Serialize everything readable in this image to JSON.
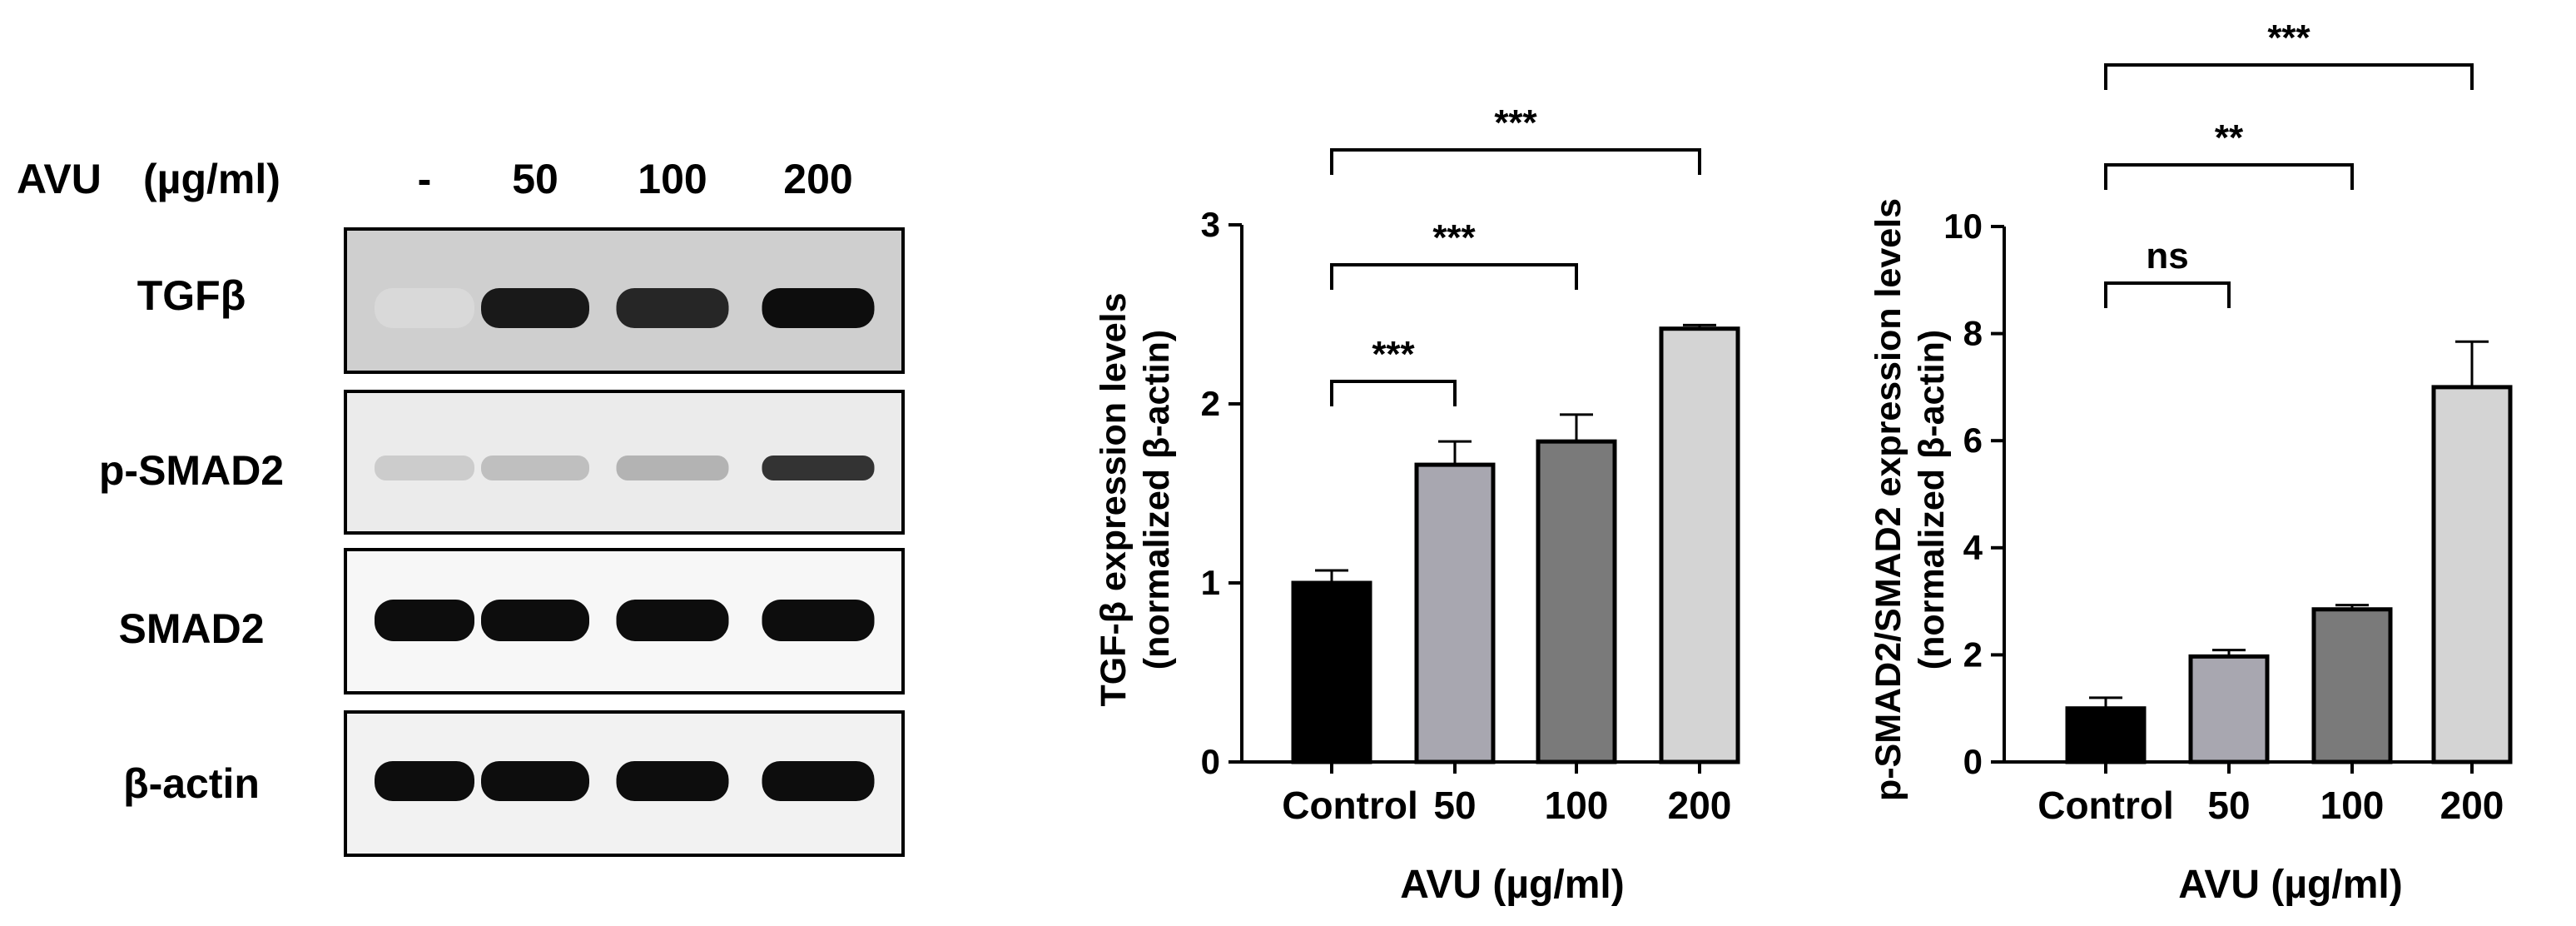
{
  "western_blot": {
    "header_label": "AVU",
    "header_unit": "(µg/ml)",
    "lanes": [
      "-",
      "50",
      "100",
      "200"
    ],
    "rows": [
      {
        "label": "TGFβ",
        "band_intensity": [
          0.15,
          0.9,
          0.85,
          0.95
        ]
      },
      {
        "label": "p-SMAD2",
        "band_intensity": [
          0.2,
          0.25,
          0.3,
          0.8
        ]
      },
      {
        "label": "SMAD2",
        "band_intensity": [
          0.95,
          0.95,
          0.95,
          0.95
        ]
      },
      {
        "label": "β-actin",
        "band_intensity": [
          0.95,
          0.95,
          0.95,
          0.95
        ]
      }
    ]
  },
  "chart_data": [
    {
      "type": "bar",
      "categories": [
        "Control",
        "50",
        "100",
        "200"
      ],
      "values": [
        1.0,
        1.66,
        1.79,
        2.42
      ],
      "errors": [
        0.07,
        0.13,
        0.15,
        0.02
      ],
      "ylabel_line1": "TGF-β expression levels",
      "ylabel_line2": "(normalized β-actin)",
      "xlabel": "AVU (µg/ml)",
      "ylim": [
        0,
        3
      ],
      "yticks": [
        "0",
        "1",
        "2",
        "3"
      ],
      "bar_colors": [
        "#000000",
        "#a8a7b0",
        "#7a7a7a",
        "#d4d4d4"
      ],
      "significance": [
        {
          "from": 0,
          "to": 1,
          "label": "***",
          "level": 1
        },
        {
          "from": 0,
          "to": 2,
          "label": "***",
          "level": 2
        },
        {
          "from": 0,
          "to": 3,
          "label": "***",
          "level": 3
        }
      ]
    },
    {
      "type": "bar",
      "categories": [
        "Control",
        "50",
        "100",
        "200"
      ],
      "values": [
        1.0,
        1.97,
        2.85,
        7.0
      ],
      "errors": [
        0.2,
        0.12,
        0.08,
        0.85
      ],
      "ylabel_line1": "p-SMAD2/SMAD2 expression levels",
      "ylabel_line2": "(normalized β-actin)",
      "xlabel": "AVU (µg/ml)",
      "ylim": [
        0,
        10
      ],
      "yticks": [
        "0",
        "2",
        "4",
        "6",
        "8",
        "10"
      ],
      "bar_colors": [
        "#000000",
        "#a8a7b0",
        "#7a7a7a",
        "#d4d4d4"
      ],
      "significance": [
        {
          "from": 0,
          "to": 1,
          "label": "ns",
          "level": 1
        },
        {
          "from": 0,
          "to": 2,
          "label": "**",
          "level": 2
        },
        {
          "from": 0,
          "to": 3,
          "label": "***",
          "level": 3
        }
      ]
    }
  ]
}
